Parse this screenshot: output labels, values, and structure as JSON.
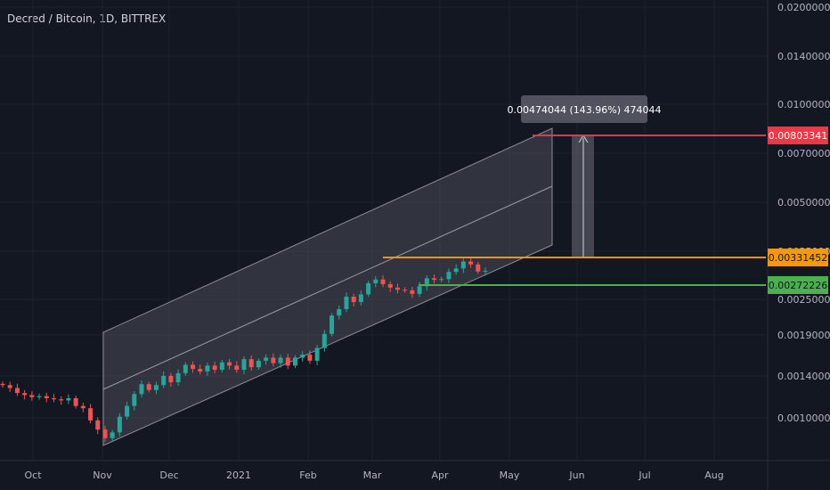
{
  "header": {
    "title": "Decred / Bitcoin, 1D, BITTREX"
  },
  "chart_data": {
    "type": "candlestick",
    "symbol": "Decred / Bitcoin",
    "interval": "1D",
    "exchange": "BITTREX",
    "y_axis": {
      "labels": [
        "0.02000000",
        "0.01400000",
        "0.01000000",
        "0.00700000",
        "0.00500000",
        "0.00350000",
        "0.00250000",
        "0.00190000",
        "0.00140000",
        "0.00100000"
      ],
      "hidden_under_tags": [
        "0.00350000",
        "0.00250000"
      ],
      "scale": "log"
    },
    "x_axis": {
      "labels": [
        "Oct",
        "Nov",
        "Dec",
        "2021",
        "Feb",
        "Mar",
        "Apr",
        "May",
        "Jun",
        "Jul",
        "Aug"
      ]
    },
    "price_tags": [
      {
        "label": "0.00803341",
        "color": "#f23645"
      },
      {
        "label": "0.00331452",
        "color": "#ff9800"
      },
      {
        "label": "0.00272226",
        "color": "#4caf50"
      }
    ],
    "measure_tooltip": {
      "label": "0.00474044 (143.96%) 474044"
    },
    "series_close": [
      0.0013,
      0.00127,
      0.00122,
      0.0012,
      0.00118,
      0.00119,
      0.00117,
      0.00116,
      0.00115,
      0.00117,
      0.0011,
      0.00108,
      0.00098,
      0.00091,
      0.00085,
      0.00089,
      0.00101,
      0.0011,
      0.00121,
      0.00131,
      0.00125,
      0.0013,
      0.0014,
      0.00133,
      0.00143,
      0.00153,
      0.00148,
      0.00145,
      0.00152,
      0.00147,
      0.00156,
      0.00152,
      0.00147,
      0.0016,
      0.0015,
      0.00158,
      0.00162,
      0.00155,
      0.00162,
      0.00152,
      0.00162,
      0.00166,
      0.00158,
      0.00175,
      0.00196,
      0.00227,
      0.00239,
      0.00264,
      0.00253,
      0.00269,
      0.00294,
      0.00303,
      0.00292,
      0.00284,
      0.00279,
      0.00278,
      0.0027,
      0.00287,
      0.00306,
      0.00302,
      0.00304,
      0.00322,
      0.00331,
      0.0035,
      0.00342,
      0.00323,
      0.00325
    ]
  }
}
